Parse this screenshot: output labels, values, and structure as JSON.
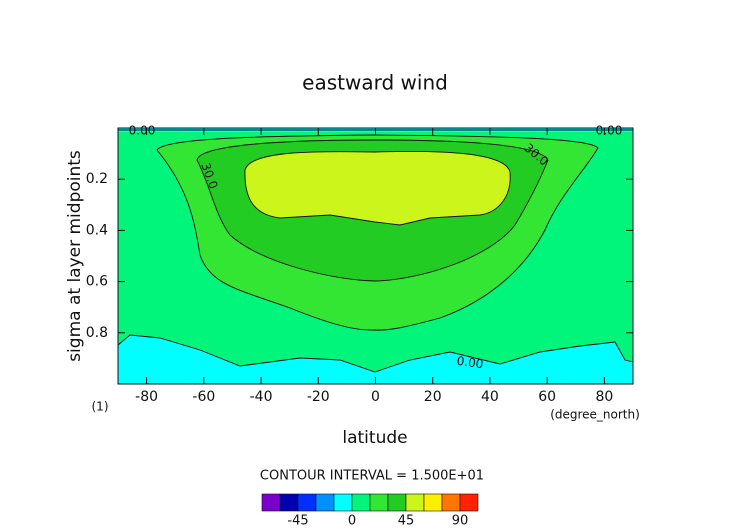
{
  "chart_data": {
    "type": "contour",
    "title": "eastward wind",
    "x_label": "latitude",
    "y_label": "sigma at layer midpoints",
    "x_unit": "(degree_north)",
    "y_unit": "(1)",
    "xlim": [
      -90,
      90
    ],
    "ylim": [
      1,
      0
    ],
    "xticks": [
      -80,
      -60,
      -40,
      -20,
      0,
      20,
      40,
      60,
      80
    ],
    "yticks": [
      0.2,
      0.4,
      0.6,
      0.8
    ],
    "contour_labels": [
      "0.00",
      "30.0"
    ],
    "contour_interval_text": "CONTOUR INTERVAL = 1.500E+01",
    "colorbar": {
      "bounds": [
        -75,
        -60,
        -45,
        -30,
        -15,
        0,
        15,
        30,
        45,
        60,
        75,
        90,
        105
      ],
      "colors": [
        "#7a00cc",
        "#0000b0",
        "#0030ff",
        "#0090ff",
        "#00ffff",
        "#00f57a",
        "#33e633",
        "#22cc22",
        "#ccf51c",
        "#ffee00",
        "#ff7700",
        "#ff2200"
      ],
      "ticks": [
        -45,
        0,
        45,
        90
      ]
    }
  }
}
